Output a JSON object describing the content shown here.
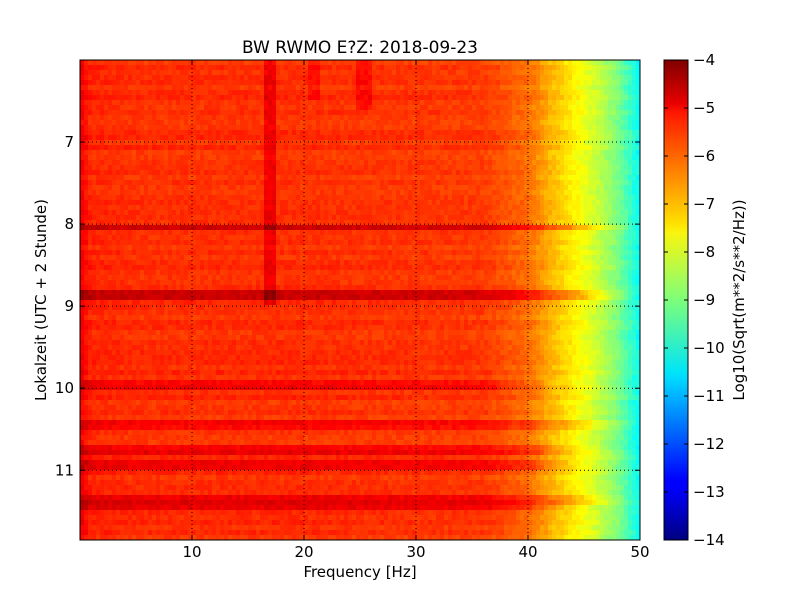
{
  "chart_data": {
    "type": "heatmap",
    "title": "BW RWMO E?Z: 2018-09-23",
    "xlabel": "Frequency [Hz]",
    "ylabel": "Lokalzeit (UTC + 2 Stunde)",
    "xlim": [
      0,
      50
    ],
    "ylim": [
      11.85,
      6.0
    ],
    "xticks": [
      {
        "value": 10,
        "label": "10"
      },
      {
        "value": 20,
        "label": "20"
      },
      {
        "value": 30,
        "label": "30"
      },
      {
        "value": 40,
        "label": "40"
      },
      {
        "value": 50,
        "label": "50"
      }
    ],
    "yticks": [
      {
        "value": 7,
        "label": "7"
      },
      {
        "value": 8,
        "label": "8"
      },
      {
        "value": 9,
        "label": "9"
      },
      {
        "value": 10,
        "label": "10"
      },
      {
        "value": 11,
        "label": "11"
      }
    ],
    "grid": true,
    "colormap": "jet",
    "colorbar": {
      "label": "Log10(Sqrt(m**2/s**2/Hz))",
      "range": [
        -14,
        -4
      ],
      "ticks": [
        {
          "value": -4,
          "label": "−4"
        },
        {
          "value": -5,
          "label": "−5"
        },
        {
          "value": -6,
          "label": "−6"
        },
        {
          "value": -7,
          "label": "−7"
        },
        {
          "value": -8,
          "label": "−8"
        },
        {
          "value": -9,
          "label": "−9"
        },
        {
          "value": -10,
          "label": "−10"
        },
        {
          "value": -11,
          "label": "−11"
        },
        {
          "value": -12,
          "label": "−12"
        },
        {
          "value": -13,
          "label": "−13"
        },
        {
          "value": -14,
          "label": "−14"
        }
      ]
    },
    "frequency_profile": [
      {
        "f": 0,
        "v": -5.1
      },
      {
        "f": 1,
        "v": -5.6
      },
      {
        "f": 5,
        "v": -5.7
      },
      {
        "f": 20,
        "v": -5.7
      },
      {
        "f": 36,
        "v": -5.8
      },
      {
        "f": 40,
        "v": -6.3
      },
      {
        "f": 42,
        "v": -7.0
      },
      {
        "f": 44,
        "v": -7.6
      },
      {
        "f": 46,
        "v": -8.2
      },
      {
        "f": 48,
        "v": -9.0
      },
      {
        "f": 50,
        "v": -10.2
      }
    ],
    "strong_bands": [
      {
        "time": 8.04,
        "f_end": 50,
        "delta": 0.9
      },
      {
        "time": 8.88,
        "f_end": 50,
        "delta": 1.0
      },
      {
        "time": 9.95,
        "f_end": 42,
        "delta": 0.5
      },
      {
        "time": 10.45,
        "f_end": 50,
        "delta": 0.5
      },
      {
        "time": 10.75,
        "f_end": 47,
        "delta": 0.6
      },
      {
        "time": 10.95,
        "f_end": 46,
        "delta": 0.6
      },
      {
        "time": 11.35,
        "f_end": 50,
        "delta": 0.7
      },
      {
        "time": 11.45,
        "f_end": 45,
        "delta": 0.6
      }
    ],
    "line_peaks": [
      {
        "freq": 16.9,
        "t_start": 6.0,
        "t_end": 9.0,
        "delta": 0.6
      },
      {
        "freq": 25.4,
        "t_start": 6.0,
        "t_end": 6.6,
        "delta": 0.4
      },
      {
        "freq": 20.8,
        "t_start": 6.0,
        "t_end": 6.5,
        "delta": 0.3
      }
    ]
  }
}
